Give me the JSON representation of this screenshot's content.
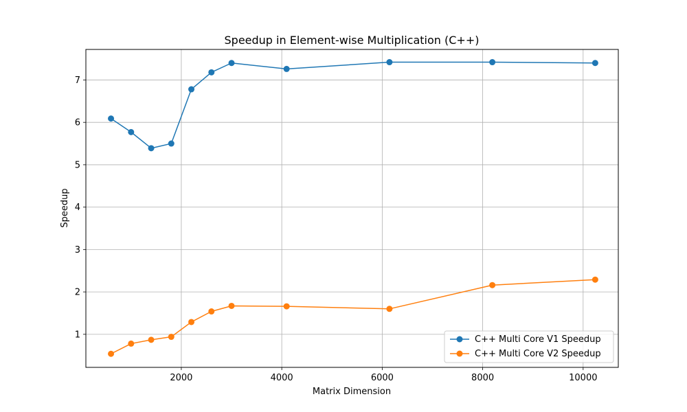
{
  "chart_data": {
    "type": "line",
    "title": "Speedup in Element-wise Multiplication (C++)",
    "xlabel": "Matrix Dimension",
    "ylabel": "Speedup",
    "xlim": [
      100,
      10700
    ],
    "ylim": [
      0.22,
      7.72
    ],
    "xticks": [
      2000,
      4000,
      6000,
      8000,
      10000
    ],
    "yticks": [
      1,
      2,
      3,
      4,
      5,
      6,
      7
    ],
    "grid": true,
    "legend_position": "lower right",
    "series": [
      {
        "name": "C++ Multi Core V1 Speedup",
        "color": "#1f77b4",
        "x": [
          600,
          1000,
          1400,
          1800,
          2200,
          2600,
          3000,
          4096,
          6144,
          8192,
          10240
        ],
        "y": [
          6.09,
          5.77,
          5.39,
          5.5,
          6.78,
          7.18,
          7.4,
          7.26,
          7.42,
          7.42,
          7.4
        ]
      },
      {
        "name": "C++ Multi Core V2 Speedup",
        "color": "#ff7f0e",
        "x": [
          600,
          1000,
          1400,
          1800,
          2200,
          2600,
          3000,
          4096,
          6144,
          8192,
          10240
        ],
        "y": [
          0.54,
          0.78,
          0.87,
          0.94,
          1.29,
          1.54,
          1.67,
          1.66,
          1.6,
          2.16,
          2.29
        ]
      }
    ]
  }
}
